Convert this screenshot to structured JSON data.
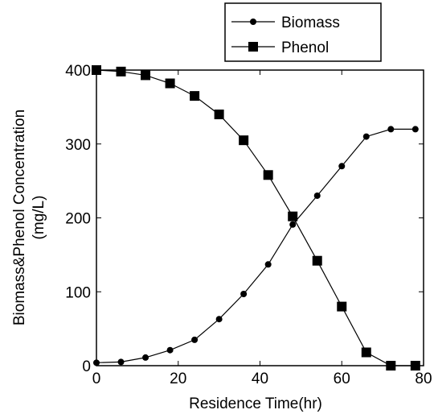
{
  "chart_data": {
    "type": "line",
    "title": "",
    "xlabel": "Residence Time(hr)",
    "ylabel_lines": [
      "Biomass&Phenol Concentration",
      "(mg/L)"
    ],
    "xlim": [
      0,
      80
    ],
    "ylim": [
      0,
      400
    ],
    "x_ticks": [
      0,
      20,
      40,
      60,
      80
    ],
    "y_ticks": [
      0,
      100,
      200,
      300,
      400
    ],
    "x_tick_labels": [
      "0",
      "20",
      "40",
      "60",
      "80"
    ],
    "y_tick_labels": [
      "0",
      "100",
      "200",
      "300",
      "400"
    ],
    "grid": false,
    "legend_position": "top-right",
    "series": [
      {
        "name": "Biomass",
        "marker": "circle",
        "color": "#000000",
        "x": [
          0,
          6,
          12,
          18,
          24,
          30,
          36,
          42,
          48,
          54,
          60,
          66,
          72,
          78
        ],
        "y": [
          4,
          5,
          11,
          21,
          35,
          63,
          97,
          137,
          191,
          230,
          270,
          310,
          320,
          320
        ]
      },
      {
        "name": "Phenol",
        "marker": "square",
        "color": "#000000",
        "x": [
          0,
          6,
          12,
          18,
          24,
          30,
          36,
          42,
          48,
          54,
          60,
          66,
          72,
          78
        ],
        "y": [
          400,
          398,
          393,
          382,
          365,
          340,
          305,
          258,
          202,
          142,
          80,
          18,
          0,
          0
        ]
      }
    ]
  }
}
